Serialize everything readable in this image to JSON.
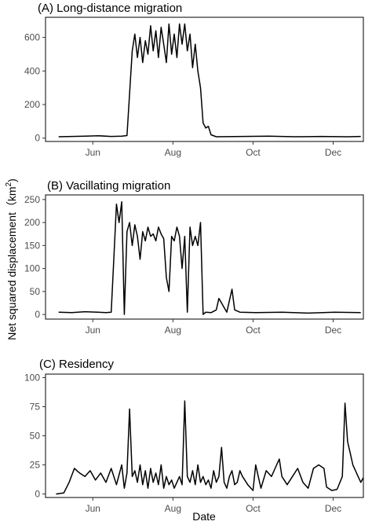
{
  "chart_data": {
    "type": "line",
    "xlabel": "Date",
    "ylabel": "Net squared displacement",
    "ylabel_unit_base": "km",
    "ylabel_unit_exp": "2",
    "x_ticks": [
      "Jun",
      "Aug",
      "Oct",
      "Dec"
    ],
    "x_range_days": [
      0,
      242
    ],
    "x_tick_days": [
      36,
      97,
      158,
      219
    ],
    "panels": [
      {
        "title": "(A) Long-distance migration",
        "ylim": [
          -20,
          720
        ],
        "y_ticks": [
          0,
          200,
          400,
          600
        ],
        "series": [
          [
            10,
            8
          ],
          [
            20,
            10
          ],
          [
            30,
            12
          ],
          [
            40,
            14
          ],
          [
            50,
            10
          ],
          [
            58,
            12
          ],
          [
            62,
            15
          ],
          [
            66,
            520
          ],
          [
            68,
            620
          ],
          [
            70,
            480
          ],
          [
            72,
            600
          ],
          [
            74,
            450
          ],
          [
            76,
            580
          ],
          [
            78,
            500
          ],
          [
            80,
            670
          ],
          [
            82,
            520
          ],
          [
            84,
            640
          ],
          [
            86,
            480
          ],
          [
            88,
            660
          ],
          [
            90,
            560
          ],
          [
            92,
            450
          ],
          [
            94,
            680
          ],
          [
            96,
            500
          ],
          [
            98,
            620
          ],
          [
            100,
            480
          ],
          [
            102,
            680
          ],
          [
            104,
            560
          ],
          [
            106,
            680
          ],
          [
            108,
            520
          ],
          [
            110,
            620
          ],
          [
            112,
            420
          ],
          [
            114,
            560
          ],
          [
            116,
            400
          ],
          [
            118,
            300
          ],
          [
            120,
            90
          ],
          [
            122,
            60
          ],
          [
            124,
            70
          ],
          [
            126,
            20
          ],
          [
            130,
            8
          ],
          [
            150,
            10
          ],
          [
            170,
            12
          ],
          [
            190,
            8
          ],
          [
            210,
            10
          ],
          [
            230,
            8
          ],
          [
            240,
            10
          ]
        ]
      },
      {
        "title": "(B) Vacillating migration",
        "ylim": [
          -10,
          260
        ],
        "y_ticks": [
          0,
          50,
          100,
          150,
          200,
          250
        ],
        "series": [
          [
            10,
            5
          ],
          [
            20,
            4
          ],
          [
            30,
            6
          ],
          [
            40,
            5
          ],
          [
            46,
            4
          ],
          [
            50,
            5
          ],
          [
            52,
            120
          ],
          [
            54,
            240
          ],
          [
            56,
            200
          ],
          [
            58,
            245
          ],
          [
            60,
            0
          ],
          [
            62,
            180
          ],
          [
            64,
            200
          ],
          [
            66,
            150
          ],
          [
            68,
            195
          ],
          [
            70,
            170
          ],
          [
            72,
            120
          ],
          [
            74,
            180
          ],
          [
            76,
            160
          ],
          [
            78,
            190
          ],
          [
            80,
            170
          ],
          [
            82,
            175
          ],
          [
            84,
            160
          ],
          [
            86,
            190
          ],
          [
            88,
            175
          ],
          [
            90,
            165
          ],
          [
            92,
            80
          ],
          [
            94,
            50
          ],
          [
            96,
            170
          ],
          [
            98,
            160
          ],
          [
            100,
            190
          ],
          [
            102,
            170
          ],
          [
            104,
            100
          ],
          [
            106,
            170
          ],
          [
            108,
            5
          ],
          [
            110,
            190
          ],
          [
            112,
            150
          ],
          [
            114,
            170
          ],
          [
            116,
            150
          ],
          [
            118,
            200
          ],
          [
            120,
            0
          ],
          [
            122,
            5
          ],
          [
            126,
            4
          ],
          [
            130,
            10
          ],
          [
            132,
            35
          ],
          [
            134,
            25
          ],
          [
            136,
            15
          ],
          [
            138,
            5
          ],
          [
            140,
            30
          ],
          [
            142,
            55
          ],
          [
            144,
            10
          ],
          [
            148,
            5
          ],
          [
            160,
            4
          ],
          [
            180,
            5
          ],
          [
            200,
            3
          ],
          [
            220,
            5
          ],
          [
            240,
            4
          ]
        ]
      },
      {
        "title": "(C) Residency",
        "ylim": [
          -3,
          103
        ],
        "y_ticks": [
          0,
          25,
          50,
          75,
          100
        ],
        "series": [
          [
            8,
            0
          ],
          [
            14,
            1
          ],
          [
            18,
            10
          ],
          [
            22,
            22
          ],
          [
            26,
            18
          ],
          [
            30,
            15
          ],
          [
            34,
            20
          ],
          [
            38,
            12
          ],
          [
            42,
            18
          ],
          [
            46,
            10
          ],
          [
            50,
            22
          ],
          [
            54,
            8
          ],
          [
            58,
            25
          ],
          [
            60,
            5
          ],
          [
            62,
            18
          ],
          [
            64,
            73
          ],
          [
            66,
            15
          ],
          [
            68,
            20
          ],
          [
            70,
            10
          ],
          [
            72,
            25
          ],
          [
            74,
            8
          ],
          [
            76,
            20
          ],
          [
            78,
            5
          ],
          [
            80,
            22
          ],
          [
            82,
            10
          ],
          [
            84,
            18
          ],
          [
            86,
            8
          ],
          [
            88,
            25
          ],
          [
            90,
            5
          ],
          [
            92,
            15
          ],
          [
            94,
            8
          ],
          [
            96,
            12
          ],
          [
            98,
            5
          ],
          [
            100,
            10
          ],
          [
            102,
            15
          ],
          [
            104,
            8
          ],
          [
            106,
            80
          ],
          [
            108,
            15
          ],
          [
            110,
            10
          ],
          [
            112,
            20
          ],
          [
            114,
            8
          ],
          [
            116,
            25
          ],
          [
            118,
            10
          ],
          [
            120,
            15
          ],
          [
            122,
            8
          ],
          [
            124,
            12
          ],
          [
            126,
            5
          ],
          [
            128,
            20
          ],
          [
            130,
            10
          ],
          [
            132,
            15
          ],
          [
            134,
            40
          ],
          [
            136,
            10
          ],
          [
            138,
            5
          ],
          [
            140,
            15
          ],
          [
            142,
            20
          ],
          [
            144,
            8
          ],
          [
            146,
            10
          ],
          [
            148,
            20
          ],
          [
            150,
            15
          ],
          [
            154,
            8
          ],
          [
            158,
            3
          ],
          [
            160,
            25
          ],
          [
            162,
            15
          ],
          [
            164,
            5
          ],
          [
            168,
            20
          ],
          [
            172,
            15
          ],
          [
            176,
            25
          ],
          [
            178,
            30
          ],
          [
            180,
            15
          ],
          [
            184,
            8
          ],
          [
            188,
            15
          ],
          [
            192,
            22
          ],
          [
            196,
            10
          ],
          [
            200,
            5
          ],
          [
            204,
            22
          ],
          [
            208,
            25
          ],
          [
            212,
            22
          ],
          [
            214,
            6
          ],
          [
            218,
            3
          ],
          [
            222,
            4
          ],
          [
            226,
            15
          ],
          [
            228,
            78
          ],
          [
            230,
            45
          ],
          [
            232,
            35
          ],
          [
            234,
            25
          ],
          [
            236,
            20
          ],
          [
            238,
            15
          ],
          [
            240,
            10
          ],
          [
            242,
            14
          ]
        ]
      }
    ]
  }
}
